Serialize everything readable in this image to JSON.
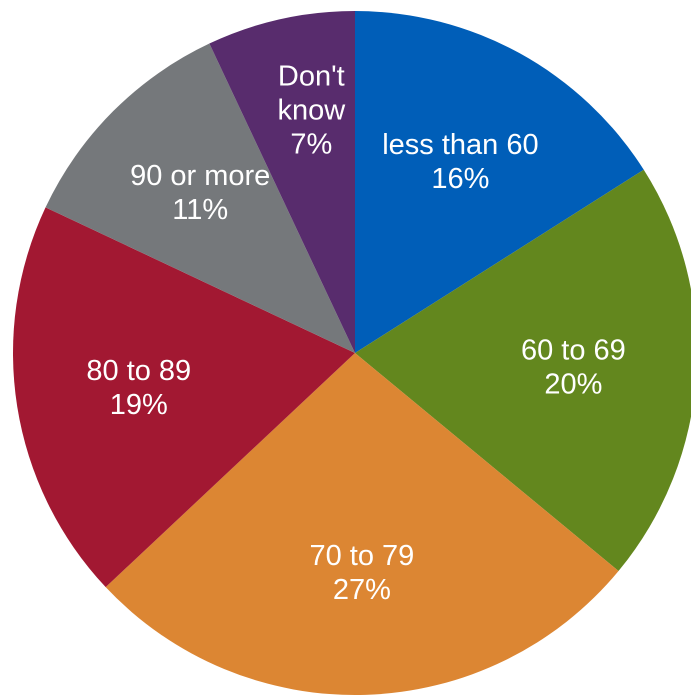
{
  "chart_data": {
    "type": "pie",
    "title": "",
    "start_angle_deg": 0,
    "direction": "clockwise",
    "slices": [
      {
        "label_lines": [
          "less than 60"
        ],
        "value": 16,
        "value_label": "16%",
        "color": "#005eb8"
      },
      {
        "label_lines": [
          "60 to 69"
        ],
        "value": 20,
        "value_label": "20%",
        "color": "#63871e"
      },
      {
        "label_lines": [
          "70 to 79"
        ],
        "value": 27,
        "value_label": "27%",
        "color": "#dc8633"
      },
      {
        "label_lines": [
          "80 to 89"
        ],
        "value": 19,
        "value_label": "19%",
        "color": "#a21832"
      },
      {
        "label_lines": [
          "90 or more"
        ],
        "value": 11,
        "value_label": "11%",
        "color": "#75787b"
      },
      {
        "label_lines": [
          "Don't",
          "know"
        ],
        "value": 7,
        "value_label": "7%",
        "color": "#582c6d"
      }
    ]
  }
}
